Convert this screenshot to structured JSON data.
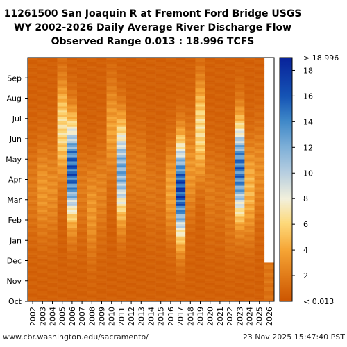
{
  "title": {
    "line1": "11261500 San Joaquin R at Fremont Ford Bridge USGS",
    "line2": "WY 2002-2026 Daily Average River Discharge Flow",
    "line3": "Observed Range 0.013 : 18.996 TCFS"
  },
  "footer": {
    "source": "www.cbr.washington.edu/sacramento/",
    "timestamp": "23 Nov 2025 15:47:40 PST"
  },
  "chart_data": {
    "type": "heatmap",
    "x": [
      "2002",
      "2003",
      "2004",
      "2005",
      "2006",
      "2007",
      "2008",
      "2009",
      "2010",
      "2011",
      "2012",
      "2013",
      "2014",
      "2015",
      "2016",
      "2017",
      "2018",
      "2019",
      "2020",
      "2021",
      "2022",
      "2023",
      "2024",
      "2025",
      "2026"
    ],
    "y_ticks": [
      "Oct",
      "Nov",
      "Dec",
      "Jan",
      "Feb",
      "Mar",
      "Apr",
      "May",
      "Jun",
      "Jul",
      "Aug",
      "Sep"
    ],
    "colorbar": {
      "min_label": "< 0.013",
      "max_label": "> 18.996",
      "ticks": [
        2,
        4,
        6,
        8,
        10,
        12,
        14,
        16,
        18
      ],
      "range": [
        0,
        19
      ]
    },
    "series": [
      {
        "year": "2002",
        "peak": 1.5,
        "peak_month": "Mar"
      },
      {
        "year": "2003",
        "peak": 3.0,
        "peak_month": "Mar"
      },
      {
        "year": "2004",
        "peak": 2.5,
        "peak_month": "Mar"
      },
      {
        "year": "2005",
        "peak": 6.5,
        "peak_month": "Jun"
      },
      {
        "year": "2006",
        "peak": 17.0,
        "peak_month": "Apr"
      },
      {
        "year": "2007",
        "peak": 1.5,
        "peak_month": "Mar"
      },
      {
        "year": "2008",
        "peak": 3.0,
        "peak_month": "Feb"
      },
      {
        "year": "2009",
        "peak": 2.0,
        "peak_month": "Mar"
      },
      {
        "year": "2010",
        "peak": 3.5,
        "peak_month": "Jun"
      },
      {
        "year": "2011",
        "peak": 13.0,
        "peak_month": "Apr"
      },
      {
        "year": "2012",
        "peak": 1.5,
        "peak_month": "Apr"
      },
      {
        "year": "2013",
        "peak": 1.5,
        "peak_month": "Apr"
      },
      {
        "year": "2014",
        "peak": 1.2,
        "peak_month": "Mar"
      },
      {
        "year": "2015",
        "peak": 1.0,
        "peak_month": "Mar"
      },
      {
        "year": "2016",
        "peak": 3.5,
        "peak_month": "Mar"
      },
      {
        "year": "2017",
        "peak": 18.0,
        "peak_month": "Mar"
      },
      {
        "year": "2018",
        "peak": 3.0,
        "peak_month": "Apr"
      },
      {
        "year": "2019",
        "peak": 6.5,
        "peak_month": "Jun"
      },
      {
        "year": "2020",
        "peak": 1.5,
        "peak_month": "Mar"
      },
      {
        "year": "2021",
        "peak": 1.2,
        "peak_month": "Mar"
      },
      {
        "year": "2022",
        "peak": 1.5,
        "peak_month": "Feb"
      },
      {
        "year": "2023",
        "peak": 16.0,
        "peak_month": "Apr"
      },
      {
        "year": "2024",
        "peak": 4.5,
        "peak_month": "Mar"
      },
      {
        "year": "2025",
        "peak": 2.5,
        "peak_month": "Apr"
      },
      {
        "year": "2026",
        "peak": 1.2,
        "peak_month": "Nov"
      }
    ]
  }
}
